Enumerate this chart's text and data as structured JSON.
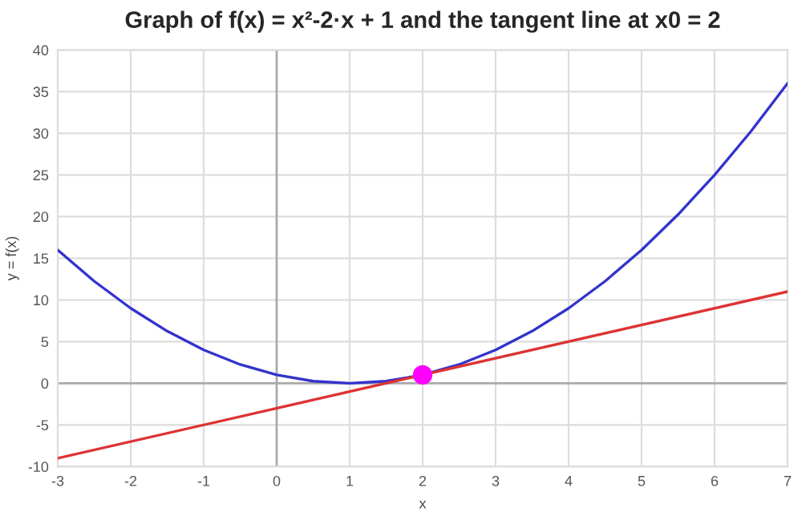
{
  "chart_data": {
    "type": "line",
    "title": "Graph of f(x) = x²-2·x + 1 and the tangent line at x0 = 2",
    "xlabel": "x",
    "ylabel": "y = f(x)",
    "series": [
      {
        "color": "#3333cc",
        "x": [
          -3,
          -2.5,
          -2,
          -1.5,
          -1,
          -0.5,
          0,
          0.5,
          1,
          1.5,
          2,
          2.5,
          3,
          3.5,
          4,
          4.5,
          5,
          5.5,
          6,
          6.5,
          7
        ],
        "values": [
          16,
          12.25,
          9,
          6.25,
          4,
          2.25,
          1,
          0.25,
          0,
          0.25,
          1,
          2.25,
          4,
          6.25,
          9,
          12.25,
          16,
          20.25,
          25,
          30.25,
          36
        ]
      },
      {
        "color": "#dd3333",
        "x": [
          -3,
          7
        ],
        "values": [
          -9,
          11
        ]
      },
      {
        "type": "scatter",
        "color": "#ff00ff",
        "x": [
          2
        ],
        "values": [
          1
        ]
      }
    ],
    "xlim": [
      -3,
      7
    ],
    "ylim": [
      -10,
      40
    ],
    "xticks": [
      -3,
      -2,
      -1,
      0,
      1,
      2,
      3,
      4,
      5,
      6,
      7
    ],
    "yticks": [
      -10,
      -5,
      0,
      5,
      10,
      15,
      20,
      25,
      30,
      35,
      40
    ],
    "grid": true,
    "line_style": "solid"
  }
}
